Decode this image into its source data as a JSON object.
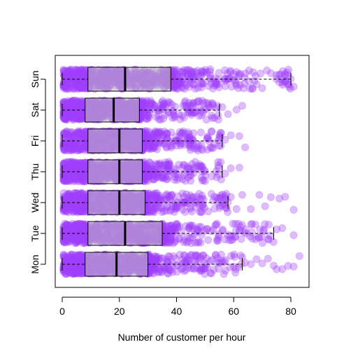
{
  "chart_data": {
    "type": "boxplot",
    "orientation": "horizontal",
    "xlabel": "Number of customer per hour",
    "ylabel": "",
    "xlim": [
      -2,
      86
    ],
    "x_ticks": [
      0,
      20,
      40,
      60,
      80
    ],
    "categories": [
      "Mon",
      "Tue",
      "Wed",
      "Thu",
      "Fri",
      "Sat",
      "Sun"
    ],
    "boxes": [
      {
        "category": "Mon",
        "q1": 8,
        "median": 19,
        "q3": 30,
        "lower_whisker": 0,
        "upper_whisker": 63
      },
      {
        "category": "Tue",
        "q1": 9,
        "median": 22,
        "q3": 35,
        "lower_whisker": 0,
        "upper_whisker": 74
      },
      {
        "category": "Wed",
        "q1": 9,
        "median": 20,
        "q3": 29,
        "lower_whisker": 0,
        "upper_whisker": 58
      },
      {
        "category": "Thu",
        "q1": 9,
        "median": 20,
        "q3": 28,
        "lower_whisker": 0,
        "upper_whisker": 56
      },
      {
        "category": "Fri",
        "q1": 9,
        "median": 20,
        "q3": 28,
        "lower_whisker": 0,
        "upper_whisker": 56
      },
      {
        "category": "Sat",
        "q1": 8,
        "median": 18,
        "q3": 27,
        "lower_whisker": 0,
        "upper_whisker": 55
      },
      {
        "category": "Sun",
        "q1": 9,
        "median": 22,
        "q3": 38,
        "lower_whisker": 0,
        "upper_whisker": 80
      }
    ],
    "outliers": {
      "Mon": [
        64,
        66,
        68,
        70,
        72,
        74,
        75,
        77,
        79,
        81,
        83
      ],
      "Tue": [
        75,
        77,
        81
      ],
      "Wed": [
        59,
        61,
        63,
        66,
        69,
        71,
        73,
        76,
        78,
        81
      ],
      "Thu": [
        57,
        59,
        62
      ],
      "Fri": [
        57,
        59,
        62,
        64
      ],
      "Sat": [
        56,
        58,
        61,
        63
      ],
      "Sun": [
        81
      ]
    },
    "grid": false,
    "point_color": "#a040ff",
    "point_alpha": 0.35
  }
}
